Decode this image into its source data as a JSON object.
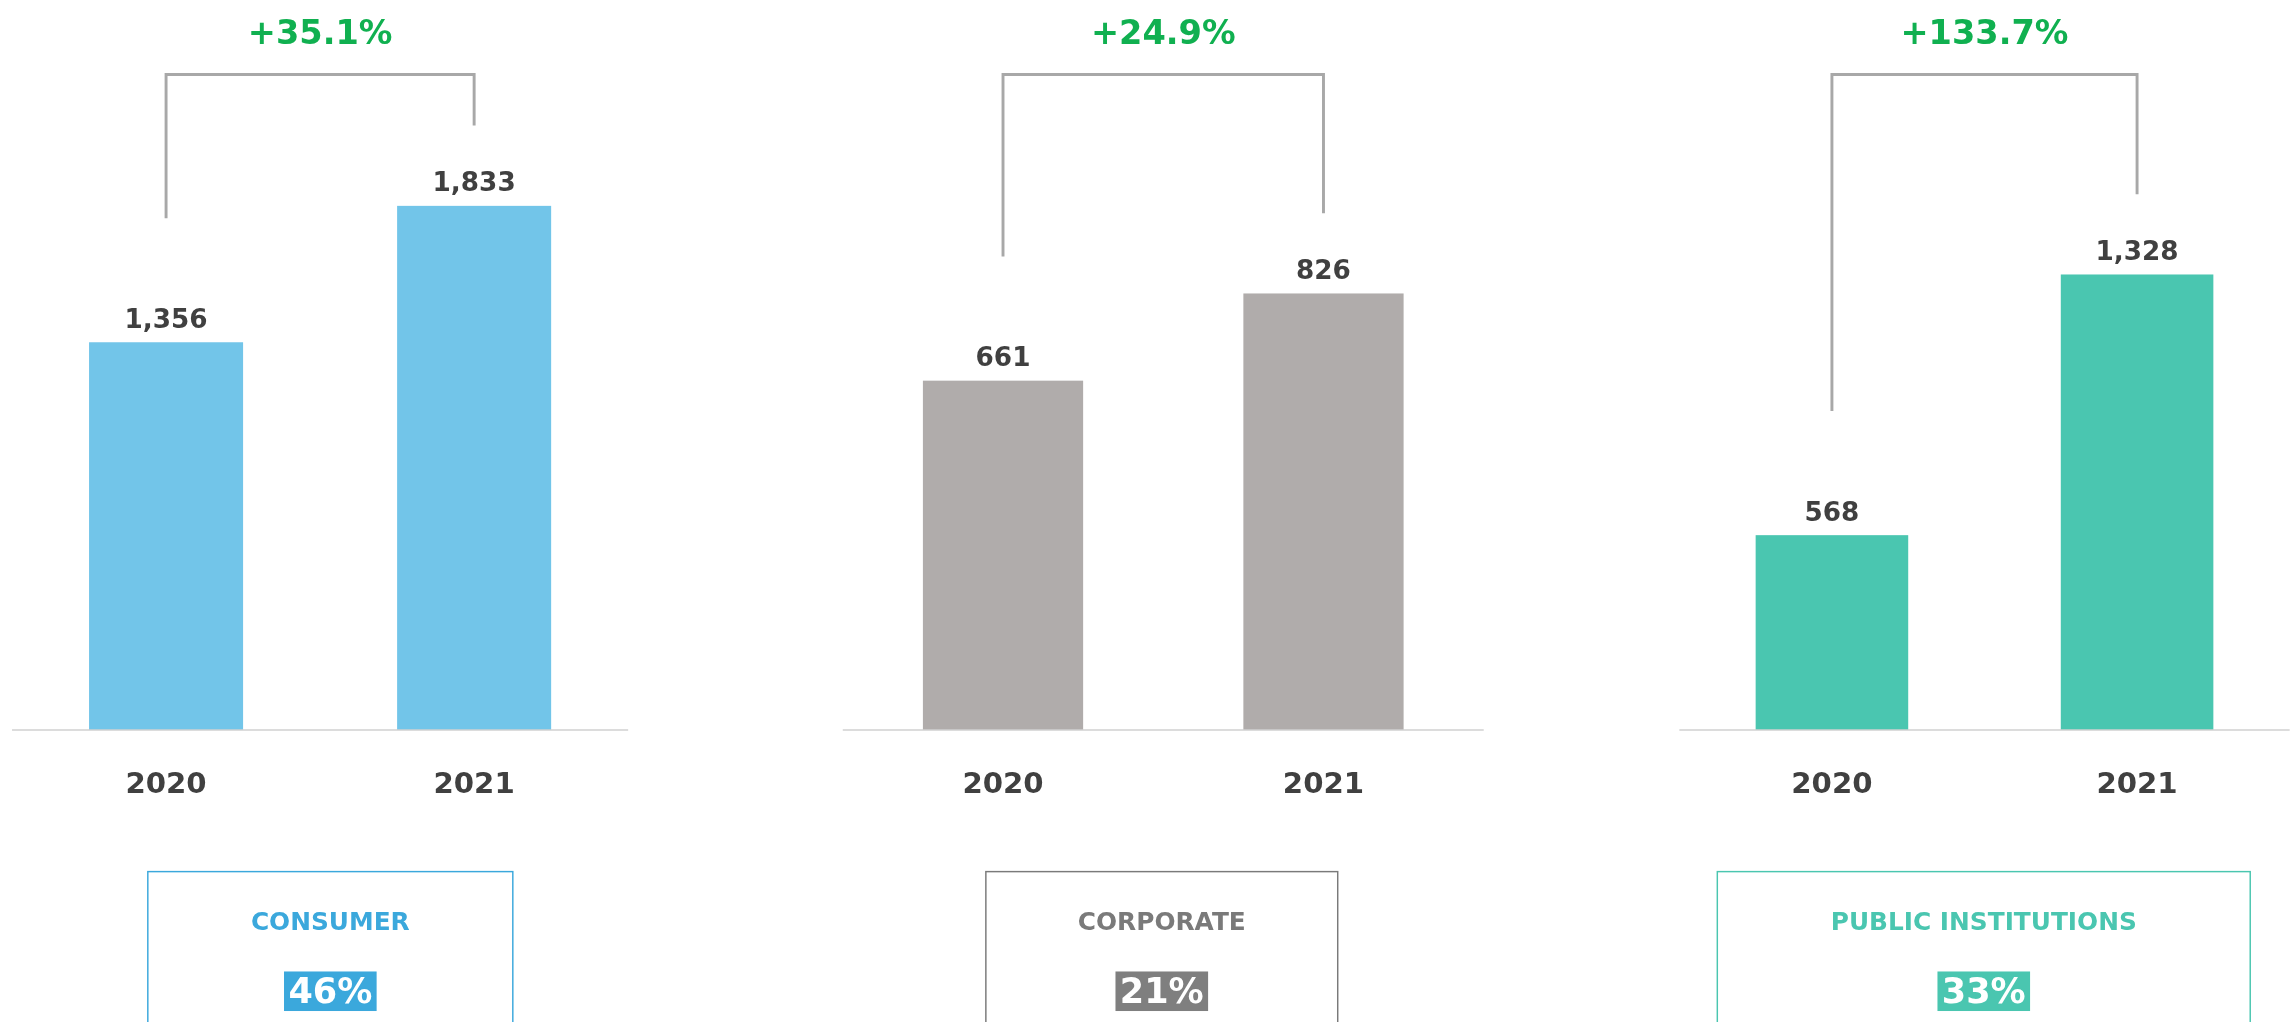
{
  "chart_data": [
    {
      "type": "bar",
      "categories": [
        "2020",
        "2021"
      ],
      "values": [
        1356,
        1833
      ],
      "color": "#72c5e9",
      "value_labels": [
        "1,356",
        "1,833"
      ],
      "annotations": [
        "+35.1%",
        "CONSUMER",
        "46%"
      ]
    },
    {
      "type": "bar",
      "categories": [
        "2020",
        "2021"
      ],
      "values": [
        661,
        826
      ],
      "color": "#b0acab",
      "value_labels": [
        "661",
        "826"
      ],
      "annotations": [
        "+24.9%",
        "CORPORATE",
        "21%"
      ]
    },
    {
      "type": "bar",
      "categories": [
        "2020",
        "2021"
      ],
      "values": [
        568,
        1328
      ],
      "color": "#4ac6b0",
      "value_labels": [
        "568",
        "1,328"
      ],
      "annotations": [
        "+133.7%",
        "PUBLIC INSTITUTIONS",
        "33%"
      ]
    }
  ]
}
